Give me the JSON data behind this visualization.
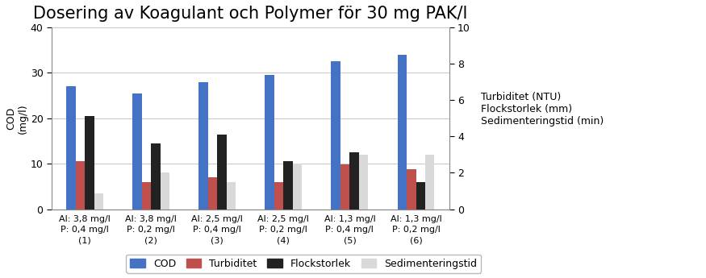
{
  "title": "Dosering av Koagulant och Polymer för 30 mg PAK/l",
  "categories": [
    "Al: 3,8 mg/l\nP: 0,4 mg/l\n(1)",
    "Al: 3,8 mg/l\nP: 0,2 mg/l\n(2)",
    "Al: 2,5 mg/l\nP: 0,4 mg/l\n(3)",
    "Al: 2,5 mg/l\nP: 0,2 mg/l\n(4)",
    "Al: 1,3 mg/l\nP: 0,4 mg/l\n(5)",
    "Al: 1,3 mg/l\nP: 0,2 mg/l\n(6)"
  ],
  "COD": [
    27,
    25.5,
    28,
    29.5,
    32.5,
    34
  ],
  "Turbiditet": [
    10.5,
    6,
    7,
    6,
    9.8,
    8.8
  ],
  "Flockstorlek": [
    20.5,
    14.5,
    16.5,
    10.5,
    12.5,
    6
  ],
  "Sedimenteringstid": [
    3.5,
    8,
    6,
    10,
    12,
    12
  ],
  "COD_color": "#4472C4",
  "Turbiditet_color": "#C0504D",
  "Flockstorlek_color": "#222222",
  "Sedimenteringstid_color": "#D9D9D9",
  "ylabel_left": "COD\n(mg/l)",
  "right_label_lines": [
    "Turbiditet (NTU)",
    "Flockstorlek (mm)",
    "Sedimenteringstid (min)"
  ],
  "ylim_left": [
    0,
    40
  ],
  "ylim_right": [
    0,
    10
  ],
  "yticks_left": [
    0,
    10,
    20,
    30,
    40
  ],
  "yticks_right": [
    0,
    2,
    4,
    6,
    8,
    10
  ],
  "legend_labels": [
    "COD",
    "Turbiditet",
    "Flockstorlek",
    "Sedimenteringstid"
  ],
  "title_fontsize": 15,
  "axis_fontsize": 9,
  "tick_fontsize": 9,
  "bar_width": 0.14,
  "background_color": "#FFFFFF"
}
